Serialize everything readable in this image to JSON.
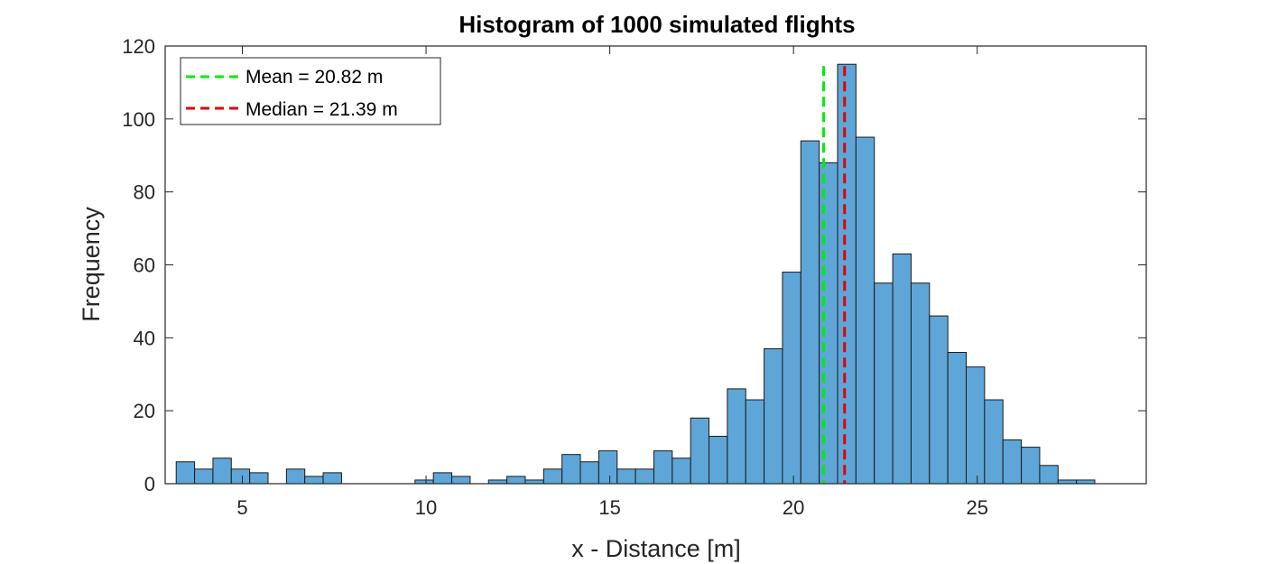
{
  "chart_data": {
    "type": "bar",
    "title": "Histogram of 1000 simulated flights",
    "xlabel": "x - Distance [m]",
    "ylabel": "Frequency",
    "xlim": [
      2.9,
      29.6
    ],
    "ylim": [
      0,
      120
    ],
    "xticks": [
      5,
      10,
      15,
      20,
      25
    ],
    "yticks": [
      0,
      20,
      40,
      60,
      80,
      100,
      120
    ],
    "grid": false,
    "legend_position": "top-left",
    "bin_edges": [
      3.2,
      3.7,
      4.2,
      4.7,
      5.2,
      5.7,
      6.2,
      6.7,
      7.2,
      7.7,
      8.2,
      8.7,
      9.2,
      9.7,
      10.2,
      10.7,
      11.2,
      11.7,
      12.2,
      12.7,
      13.2,
      13.7,
      14.2,
      14.7,
      15.2,
      15.7,
      16.2,
      16.7,
      17.2,
      17.7,
      18.2,
      18.7,
      19.2,
      19.7,
      20.2,
      20.7,
      21.2,
      21.7,
      22.2,
      22.7,
      23.2,
      23.7,
      24.2,
      24.7,
      25.2,
      25.7,
      26.2,
      26.7,
      27.2,
      27.7,
      28.2
    ],
    "counts": [
      6,
      4,
      7,
      4,
      3,
      0,
      4,
      2,
      3,
      0,
      0,
      0,
      0,
      1,
      3,
      2,
      0,
      1,
      2,
      1,
      4,
      8,
      6,
      9,
      4,
      4,
      9,
      7,
      18,
      13,
      26,
      23,
      37,
      58,
      94,
      88,
      115,
      95,
      55,
      63,
      55,
      46,
      36,
      32,
      23,
      12,
      10,
      5,
      1,
      1
    ],
    "bar_color": "#5fa6d8",
    "reference_lines": [
      {
        "name": "Mean = 20.82 m",
        "x": 20.82,
        "color": "#00ee00"
      },
      {
        "name": "Median = 21.39 m",
        "x": 21.39,
        "color": "#e00000"
      }
    ]
  }
}
